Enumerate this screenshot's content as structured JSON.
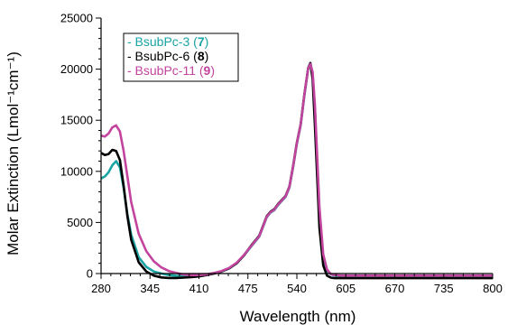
{
  "chart_data": {
    "type": "line",
    "xlabel": "Wavelength (nm)",
    "ylabel": "Molar Extinction (Lmol⁻¹cm⁻¹)",
    "xlim": [
      280,
      800
    ],
    "ylim": [
      0,
      25000
    ],
    "xticks": [
      280,
      345,
      410,
      475,
      540,
      605,
      670,
      735,
      800
    ],
    "yticks": [
      0,
      5000,
      10000,
      15000,
      20000,
      25000
    ],
    "grid": false,
    "legend_position": "top-left",
    "series": [
      {
        "name": "BsubPc-3",
        "number": "7",
        "color": "#1aa3a3",
        "x": [
          280,
          285,
          290,
          295,
          300,
          305,
          310,
          315,
          320,
          330,
          340,
          350,
          360,
          370,
          380,
          390,
          400,
          410,
          420,
          430,
          440,
          450,
          460,
          470,
          480,
          490,
          500,
          505,
          510,
          515,
          520,
          525,
          530,
          535,
          540,
          545,
          550,
          555,
          558,
          561,
          564,
          567,
          570,
          575,
          580,
          585,
          590,
          600,
          610,
          650,
          700,
          750,
          800
        ],
        "y": [
          9300,
          9500,
          9900,
          10600,
          11000,
          10400,
          8400,
          5800,
          3800,
          1600,
          650,
          200,
          0,
          -150,
          -230,
          -260,
          -250,
          -200,
          -100,
          0,
          200,
          500,
          1000,
          1800,
          2700,
          3600,
          5500,
          5950,
          6200,
          6700,
          7100,
          7500,
          8400,
          10400,
          12700,
          14500,
          17400,
          20000,
          20600,
          19500,
          16000,
          11000,
          6000,
          1600,
          300,
          -80,
          -200,
          -250,
          -250,
          -250,
          -260,
          -270,
          -280
        ]
      },
      {
        "name": "BsubPc-6",
        "number": "8",
        "color": "#000000",
        "x": [
          280,
          285,
          290,
          295,
          300,
          305,
          310,
          315,
          320,
          330,
          340,
          350,
          360,
          370,
          380,
          390,
          400,
          410,
          420,
          430,
          440,
          450,
          460,
          470,
          480,
          490,
          500,
          505,
          510,
          515,
          520,
          525,
          530,
          535,
          540,
          545,
          550,
          555,
          558,
          561,
          564,
          567,
          570,
          575,
          580,
          585,
          590,
          600,
          610,
          650,
          700,
          750,
          800
        ],
        "y": [
          11800,
          11600,
          11700,
          12100,
          12000,
          11100,
          8600,
          5600,
          3300,
          1100,
          200,
          -200,
          -380,
          -430,
          -430,
          -400,
          -350,
          -280,
          -150,
          0,
          200,
          500,
          1000,
          1800,
          2800,
          3700,
          5600,
          6050,
          6300,
          6800,
          7200,
          7600,
          8500,
          10500,
          12800,
          14600,
          17500,
          20100,
          20600,
          19000,
          14500,
          9500,
          4500,
          800,
          -200,
          -400,
          -450,
          -450,
          -450,
          -450,
          -450,
          -450,
          -450
        ]
      },
      {
        "name": "BsubPc-11",
        "number": "9",
        "color": "#c2449e",
        "x": [
          280,
          285,
          290,
          295,
          300,
          305,
          310,
          315,
          320,
          330,
          340,
          350,
          360,
          370,
          380,
          390,
          400,
          410,
          420,
          430,
          440,
          450,
          460,
          470,
          480,
          490,
          500,
          505,
          510,
          515,
          520,
          525,
          530,
          535,
          540,
          545,
          550,
          555,
          558,
          561,
          564,
          567,
          570,
          575,
          580,
          585,
          590,
          600,
          610,
          650,
          700,
          750,
          800
        ],
        "y": [
          13500,
          13400,
          13700,
          14300,
          14500,
          13900,
          12000,
          9500,
          7000,
          3900,
          2200,
          1200,
          600,
          250,
          50,
          -100,
          -160,
          -150,
          -80,
          50,
          250,
          550,
          1050,
          1850,
          2750,
          3650,
          5550,
          6000,
          6250,
          6750,
          7150,
          7550,
          8450,
          10450,
          12750,
          14550,
          17450,
          20050,
          20500,
          19700,
          16500,
          11500,
          6500,
          1900,
          400,
          -50,
          -150,
          -200,
          -200,
          -200,
          -200,
          -200,
          -200
        ]
      }
    ]
  }
}
